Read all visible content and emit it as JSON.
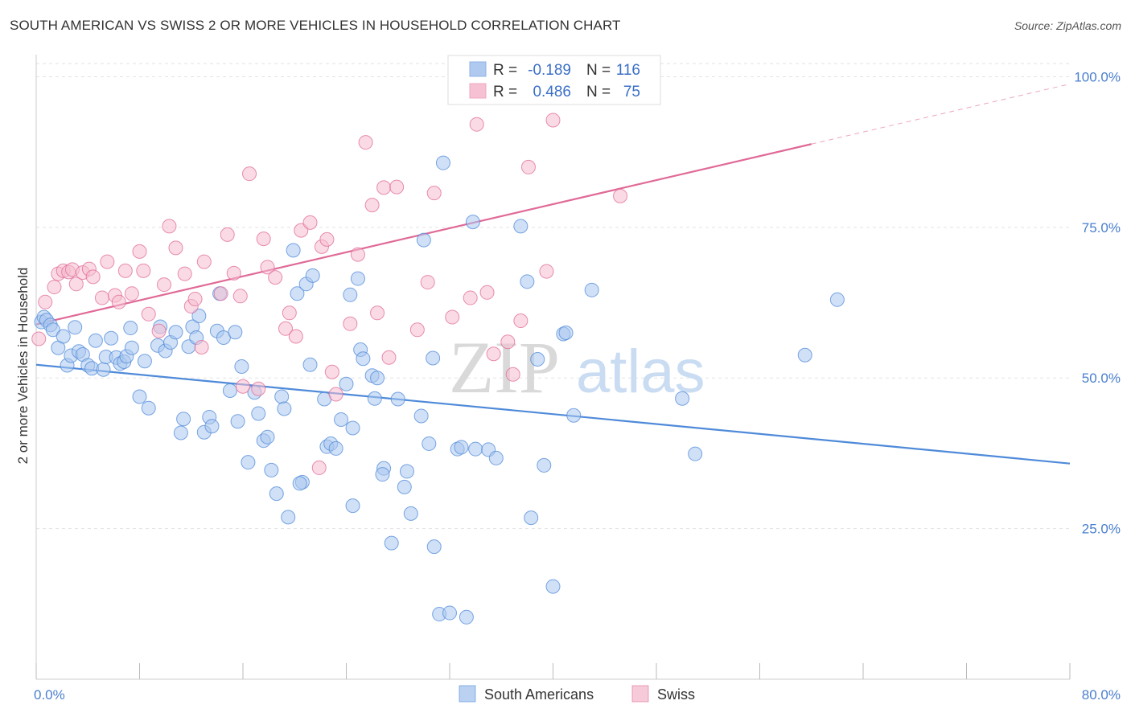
{
  "title": "SOUTH AMERICAN VS SWISS 2 OR MORE VEHICLES IN HOUSEHOLD CORRELATION CHART",
  "source": "Source: ZipAtlas.com",
  "watermark": {
    "zip": "ZIP",
    "atlas": "atlas"
  },
  "chart_data": {
    "type": "scatter",
    "ylabel": "2 or more Vehicles in Household",
    "xlim": [
      0,
      80
    ],
    "ylim": [
      0,
      103
    ],
    "x_tick_labels": [
      {
        "value": 0,
        "label": "0.0%"
      },
      {
        "value": 80,
        "label": "80.0%"
      }
    ],
    "y_tick_labels": [
      {
        "value": 25,
        "label": "25.0%"
      },
      {
        "value": 50,
        "label": "50.0%"
      },
      {
        "value": 75,
        "label": "75.0%"
      },
      {
        "value": 100,
        "label": "100.0%"
      }
    ],
    "grid": true,
    "legend": {
      "position": "top-center",
      "entries": [
        {
          "r_label": "R =",
          "r_value": "-0.189",
          "n_label": "N =",
          "n_value": "116",
          "color": "#8fb3e8"
        },
        {
          "r_label": "R =",
          "r_value": "0.486",
          "n_label": "N =",
          "n_value": "75",
          "color": "#f2a7c0"
        }
      ]
    },
    "series": [
      {
        "name": "South Americans",
        "color": "#4f8ad9",
        "fill": "#a9c6ef",
        "trend": {
          "x": [
            0,
            80
          ],
          "y": [
            52.2,
            35.8
          ],
          "dashed_ext": false
        },
        "points": [
          [
            0.4,
            59.3
          ],
          [
            0.6,
            60.1
          ],
          [
            0.8,
            59.6
          ],
          [
            1.1,
            58.8
          ],
          [
            1.3,
            58.0
          ],
          [
            1.7,
            55.0
          ],
          [
            2.1,
            56.9
          ],
          [
            2.4,
            52.1
          ],
          [
            2.7,
            53.7
          ],
          [
            3.0,
            58.4
          ],
          [
            3.3,
            54.4
          ],
          [
            3.6,
            53.9
          ],
          [
            4.0,
            52.1
          ],
          [
            4.3,
            51.6
          ],
          [
            4.6,
            56.2
          ],
          [
            5.2,
            51.4
          ],
          [
            5.4,
            53.5
          ],
          [
            5.8,
            56.6
          ],
          [
            6.2,
            53.4
          ],
          [
            6.5,
            52.4
          ],
          [
            6.8,
            52.7
          ],
          [
            7.0,
            53.6
          ],
          [
            7.4,
            55.0
          ],
          [
            7.3,
            58.3
          ],
          [
            8.0,
            46.9
          ],
          [
            8.4,
            52.8
          ],
          [
            8.7,
            45.0
          ],
          [
            9.4,
            55.4
          ],
          [
            9.6,
            58.5
          ],
          [
            10.0,
            54.5
          ],
          [
            10.4,
            55.9
          ],
          [
            10.8,
            57.6
          ],
          [
            11.2,
            40.9
          ],
          [
            11.4,
            43.2
          ],
          [
            11.8,
            55.2
          ],
          [
            12.1,
            58.5
          ],
          [
            12.4,
            56.7
          ],
          [
            12.6,
            60.3
          ],
          [
            13.0,
            41.0
          ],
          [
            13.4,
            43.5
          ],
          [
            13.6,
            42.0
          ],
          [
            14.0,
            57.8
          ],
          [
            14.2,
            64.0
          ],
          [
            14.5,
            56.7
          ],
          [
            15.0,
            47.9
          ],
          [
            15.4,
            57.6
          ],
          [
            15.6,
            42.8
          ],
          [
            15.9,
            51.9
          ],
          [
            16.4,
            36.0
          ],
          [
            16.9,
            47.6
          ],
          [
            17.2,
            44.1
          ],
          [
            17.6,
            39.6
          ],
          [
            17.9,
            40.2
          ],
          [
            18.2,
            34.7
          ],
          [
            18.6,
            30.8
          ],
          [
            19.0,
            46.9
          ],
          [
            19.2,
            44.9
          ],
          [
            19.5,
            26.9
          ],
          [
            19.9,
            71.2
          ],
          [
            20.2,
            64.0
          ],
          [
            20.6,
            32.7
          ],
          [
            20.9,
            65.6
          ],
          [
            21.2,
            52.2
          ],
          [
            21.4,
            67.0
          ],
          [
            22.3,
            46.5
          ],
          [
            22.5,
            38.6
          ],
          [
            22.8,
            39.1
          ],
          [
            23.2,
            38.3
          ],
          [
            23.6,
            43.1
          ],
          [
            24.0,
            49.0
          ],
          [
            24.3,
            63.8
          ],
          [
            24.5,
            41.7
          ],
          [
            24.9,
            66.5
          ],
          [
            25.1,
            54.7
          ],
          [
            25.3,
            53.2
          ],
          [
            26.0,
            50.4
          ],
          [
            26.2,
            46.6
          ],
          [
            26.4,
            50.0
          ],
          [
            26.9,
            35.0
          ],
          [
            26.8,
            34.0
          ],
          [
            27.5,
            22.6
          ],
          [
            28.0,
            46.5
          ],
          [
            28.5,
            31.9
          ],
          [
            28.7,
            34.5
          ],
          [
            29.0,
            27.5
          ],
          [
            29.8,
            43.7
          ],
          [
            30.0,
            72.9
          ],
          [
            30.4,
            39.1
          ],
          [
            30.7,
            53.3
          ],
          [
            30.8,
            22.0
          ],
          [
            31.2,
            10.8
          ],
          [
            31.5,
            85.7
          ],
          [
            32.0,
            11.0
          ],
          [
            32.6,
            38.2
          ],
          [
            32.9,
            38.5
          ],
          [
            33.3,
            10.3
          ],
          [
            33.8,
            75.9
          ],
          [
            34.0,
            38.2
          ],
          [
            35.0,
            38.1
          ],
          [
            35.6,
            36.7
          ],
          [
            37.5,
            75.2
          ],
          [
            38.0,
            66.0
          ],
          [
            38.3,
            26.8
          ],
          [
            38.8,
            53.1
          ],
          [
            39.3,
            35.5
          ],
          [
            40.0,
            15.4
          ],
          [
            40.8,
            57.3
          ],
          [
            41.0,
            57.5
          ],
          [
            41.6,
            43.8
          ],
          [
            43.0,
            64.6
          ],
          [
            50.0,
            46.6
          ],
          [
            51.0,
            37.4
          ],
          [
            59.5,
            53.8
          ],
          [
            62.0,
            63.0
          ],
          [
            24.5,
            28.8
          ],
          [
            20.4,
            32.5
          ]
        ]
      },
      {
        "name": "Swiss",
        "color": "#e06a97",
        "fill": "#f5bdd0",
        "trend": {
          "x": [
            0,
            80
          ],
          "y": [
            58.9,
            98.8
          ],
          "solid_until_x": 60
        },
        "points": [
          [
            0.2,
            56.5
          ],
          [
            0.7,
            62.6
          ],
          [
            1.4,
            65.1
          ],
          [
            1.7,
            67.3
          ],
          [
            2.1,
            67.8
          ],
          [
            2.5,
            67.6
          ],
          [
            2.8,
            68.0
          ],
          [
            3.1,
            65.6
          ],
          [
            3.6,
            67.5
          ],
          [
            4.1,
            68.1
          ],
          [
            4.4,
            66.8
          ],
          [
            5.1,
            63.3
          ],
          [
            5.5,
            69.3
          ],
          [
            6.1,
            63.7
          ],
          [
            6.4,
            62.6
          ],
          [
            6.9,
            67.8
          ],
          [
            7.4,
            64.0
          ],
          [
            8.0,
            71.0
          ],
          [
            8.3,
            67.8
          ],
          [
            8.7,
            60.6
          ],
          [
            9.5,
            57.8
          ],
          [
            9.9,
            65.5
          ],
          [
            10.3,
            75.2
          ],
          [
            10.8,
            71.6
          ],
          [
            11.5,
            67.3
          ],
          [
            12.0,
            61.9
          ],
          [
            12.3,
            63.1
          ],
          [
            12.8,
            55.1
          ],
          [
            13.0,
            69.3
          ],
          [
            14.3,
            64.0
          ],
          [
            14.8,
            73.8
          ],
          [
            15.3,
            67.4
          ],
          [
            15.8,
            63.6
          ],
          [
            16.0,
            48.6
          ],
          [
            16.5,
            83.9
          ],
          [
            17.2,
            48.2
          ],
          [
            17.6,
            73.1
          ],
          [
            17.9,
            68.4
          ],
          [
            18.5,
            66.7
          ],
          [
            19.3,
            58.2
          ],
          [
            19.6,
            60.8
          ],
          [
            20.1,
            56.9
          ],
          [
            20.5,
            74.5
          ],
          [
            21.2,
            75.8
          ],
          [
            21.9,
            35.1
          ],
          [
            22.1,
            71.8
          ],
          [
            22.5,
            73.0
          ],
          [
            22.9,
            51.0
          ],
          [
            23.2,
            47.3
          ],
          [
            24.3,
            59.0
          ],
          [
            24.9,
            70.5
          ],
          [
            25.5,
            89.1
          ],
          [
            26.0,
            78.7
          ],
          [
            26.4,
            60.8
          ],
          [
            26.9,
            81.6
          ],
          [
            27.3,
            53.4
          ],
          [
            27.9,
            81.7
          ],
          [
            29.5,
            58.0
          ],
          [
            30.3,
            65.9
          ],
          [
            30.8,
            80.7
          ],
          [
            32.2,
            60.1
          ],
          [
            33.1,
            100.0
          ],
          [
            33.4,
            100.0
          ],
          [
            33.6,
            63.3
          ],
          [
            34.1,
            92.1
          ],
          [
            34.9,
            64.2
          ],
          [
            35.4,
            54.0
          ],
          [
            36.5,
            56.0
          ],
          [
            36.9,
            50.6
          ],
          [
            37.5,
            59.5
          ],
          [
            38.1,
            85.0
          ],
          [
            39.5,
            67.7
          ],
          [
            40.0,
            92.8
          ],
          [
            41.2,
            100.0
          ],
          [
            45.2,
            80.2
          ]
        ]
      }
    ]
  },
  "bottom_legend": [
    {
      "label": "South Americans",
      "color": "#a9c6ef",
      "stroke": "#4f8ad9"
    },
    {
      "label": "Swiss",
      "color": "#f5bdd0",
      "stroke": "#e06a97"
    }
  ]
}
